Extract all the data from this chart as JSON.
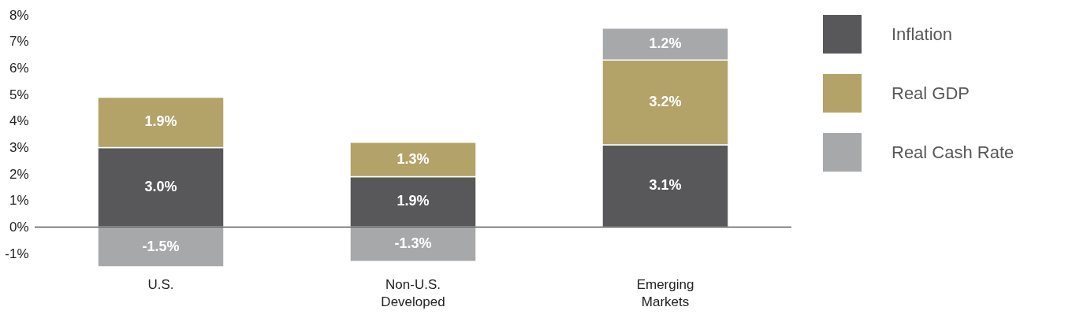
{
  "chart_data": {
    "type": "bar",
    "stacked": true,
    "categories": [
      "U.S.",
      "Non-U.S.\nDeveloped",
      "Emerging\nMarkets"
    ],
    "series": [
      {
        "name": "Inflation",
        "color": "#58585a",
        "values": [
          3.0,
          1.9,
          3.1
        ],
        "value_labels": [
          "3.0%",
          "1.9%",
          "3.1%"
        ]
      },
      {
        "name": "Real GDP",
        "color": "#b3a369",
        "values": [
          1.9,
          1.3,
          3.2
        ],
        "value_labels": [
          "1.9%",
          "1.3%",
          "3.2%"
        ]
      },
      {
        "name": "Real Cash Rate",
        "color": "#a7a8aa",
        "values": [
          -1.5,
          -1.3,
          1.2
        ],
        "value_labels": [
          "-1.5%",
          "-1.3%",
          "1.2%"
        ]
      }
    ],
    "ylim": [
      -1.5,
      8
    ],
    "yticks": [
      {
        "value": -1,
        "label": "-1%"
      },
      {
        "value": 0,
        "label": "0%"
      },
      {
        "value": 1,
        "label": "1%"
      },
      {
        "value": 2,
        "label": "2%"
      },
      {
        "value": 3,
        "label": "3%"
      },
      {
        "value": 4,
        "label": "4%"
      },
      {
        "value": 5,
        "label": "5%"
      },
      {
        "value": 6,
        "label": "6%"
      },
      {
        "value": 7,
        "label": "7%"
      },
      {
        "value": 8,
        "label": "8%"
      }
    ],
    "ref_lines": [
      {
        "axis": "y",
        "value": 0,
        "color": "#58585a"
      }
    ],
    "grid": false,
    "legend": "right"
  }
}
